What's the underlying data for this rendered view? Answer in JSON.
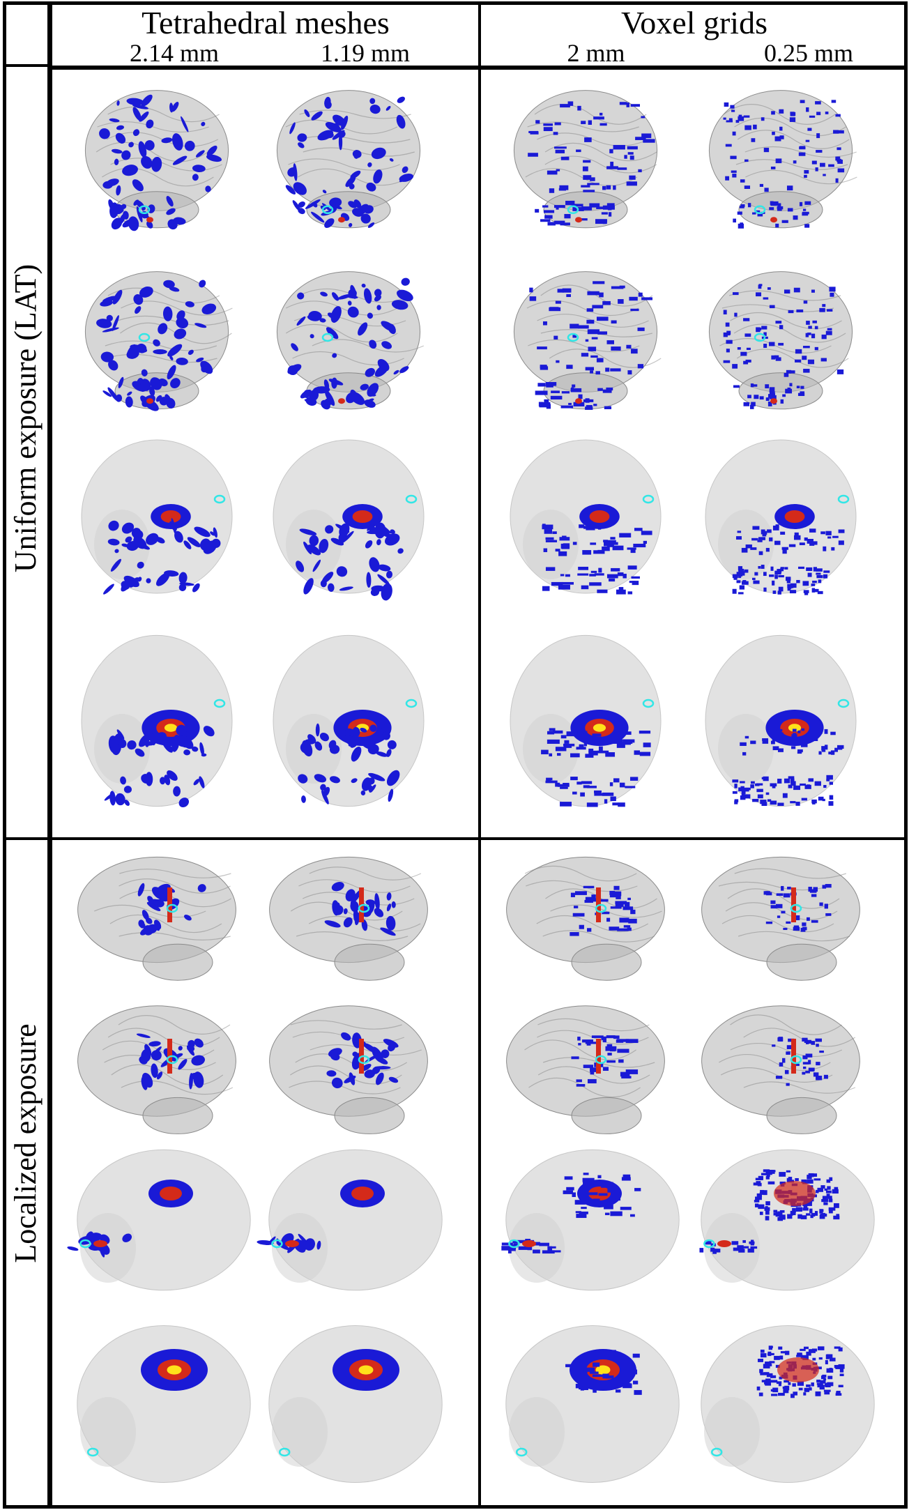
{
  "header": {
    "groups": [
      {
        "title": "Tetrahedral meshes",
        "resolutions": [
          "2.14 mm",
          "1.19 mm"
        ]
      },
      {
        "title": "Voxel grids",
        "resolutions": [
          "2 mm",
          "0.25 mm"
        ]
      }
    ]
  },
  "row_labels": {
    "uniform": "Uniform exposure (LAT)",
    "localized": "Localized exposure"
  },
  "colors": {
    "brain": "#b5b5b5",
    "head": "#e2e2e2",
    "hotspot_low": "#1a1ad6",
    "hotspot_mid": "#d42a1a",
    "hotspot_high": "#ffe21a",
    "marker": "#32e6e6"
  },
  "panels": {
    "uniform": [
      "brain-front",
      "brain-front-dense",
      "head-front",
      "head-front-oblique"
    ],
    "localized": [
      "brain-side",
      "brain-side-oblique",
      "head-side",
      "head-side-oblique"
    ],
    "methods": [
      "tet-2.14mm",
      "tet-1.19mm",
      "voxel-2mm",
      "voxel-0.25mm"
    ]
  }
}
